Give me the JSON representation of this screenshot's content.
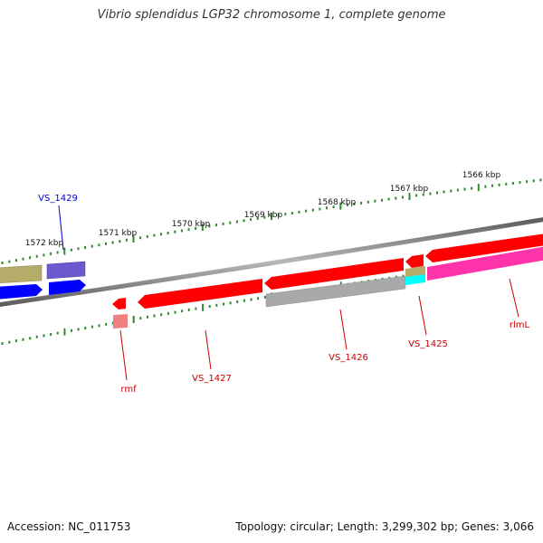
{
  "header": {
    "title": "Vibrio splendidus LGP32 chromosome 1, complete genome"
  },
  "footer": {
    "accession": "Accession: NC_011753",
    "summary": "Topology: circular; Length: 3,299,302 bp; Genes: 3,066"
  },
  "scale": {
    "tick_labels": [
      "1572 kbp",
      "1571 kbp",
      "1570 kbp",
      "1569 kbp",
      "1568 kbp",
      "1567 kbp",
      "1566 kbp"
    ]
  },
  "genes": {
    "labels": [
      "VS_1429",
      "rmf",
      "VS_1427",
      "VS_1426",
      "VS_1425",
      "rlmL"
    ]
  },
  "colors": {
    "ticks": "#2e8b2e",
    "backbone": "#808080",
    "gene_red": "#ff0000",
    "gene_blue": "#0000ff",
    "gene_purple": "#6a5acd",
    "gene_olive": "#b5ac6a",
    "gene_gray": "#a9a9a9",
    "gene_magenta": "#ff33aa",
    "gene_cyan": "#00ffff",
    "label_red": "#cc0000",
    "label_blue": "#0000cc"
  }
}
